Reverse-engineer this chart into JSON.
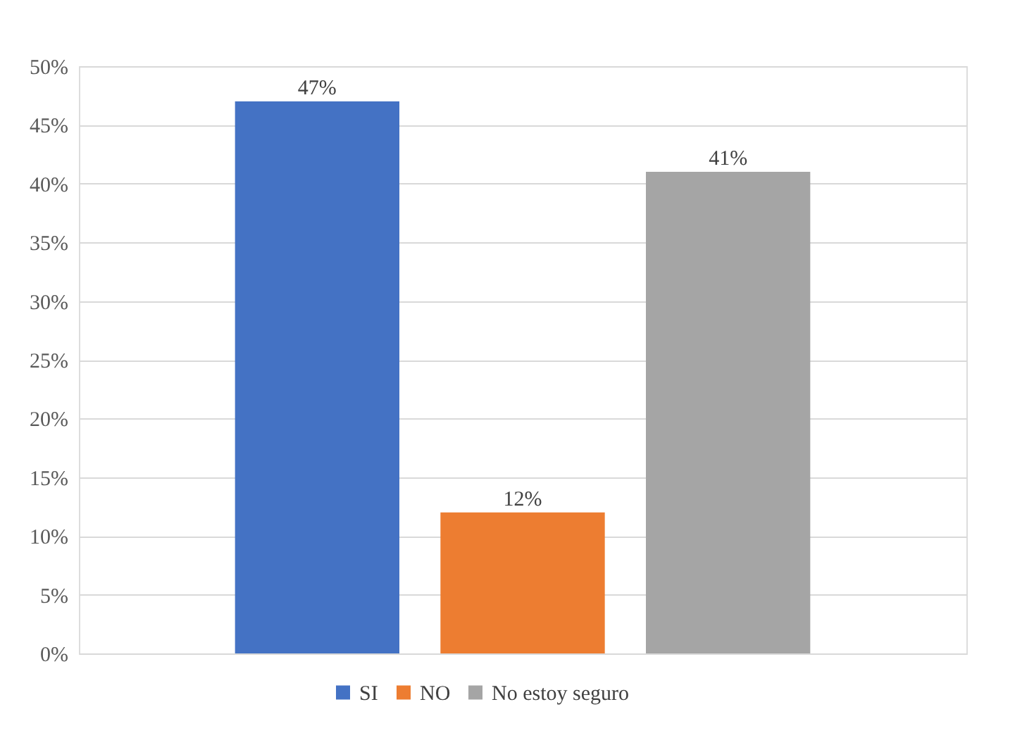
{
  "chart_data": {
    "type": "bar",
    "categories": [
      null
    ],
    "series": [
      {
        "name": "SI",
        "color": "#4472c4",
        "values": [
          47
        ],
        "value_labels": [
          "47%"
        ]
      },
      {
        "name": "NO",
        "color": "#ed7d31",
        "values": [
          12
        ],
        "value_labels": [
          "12%"
        ]
      },
      {
        "name": "No estoy seguro",
        "color": "#a5a5a5",
        "values": [
          41
        ],
        "value_labels": [
          "41%"
        ]
      }
    ],
    "ylim": [
      0,
      50
    ],
    "yticks": [
      {
        "value": 0,
        "label": "0%"
      },
      {
        "value": 5,
        "label": "5%"
      },
      {
        "value": 10,
        "label": "10%"
      },
      {
        "value": 15,
        "label": "15%"
      },
      {
        "value": 20,
        "label": "20%"
      },
      {
        "value": 25,
        "label": "25%"
      },
      {
        "value": 30,
        "label": "30%"
      },
      {
        "value": 35,
        "label": "35%"
      },
      {
        "value": 40,
        "label": "40%"
      },
      {
        "value": 45,
        "label": "45%"
      },
      {
        "value": 50,
        "label": "50%"
      }
    ],
    "grid": "y",
    "legend": "bottom"
  }
}
